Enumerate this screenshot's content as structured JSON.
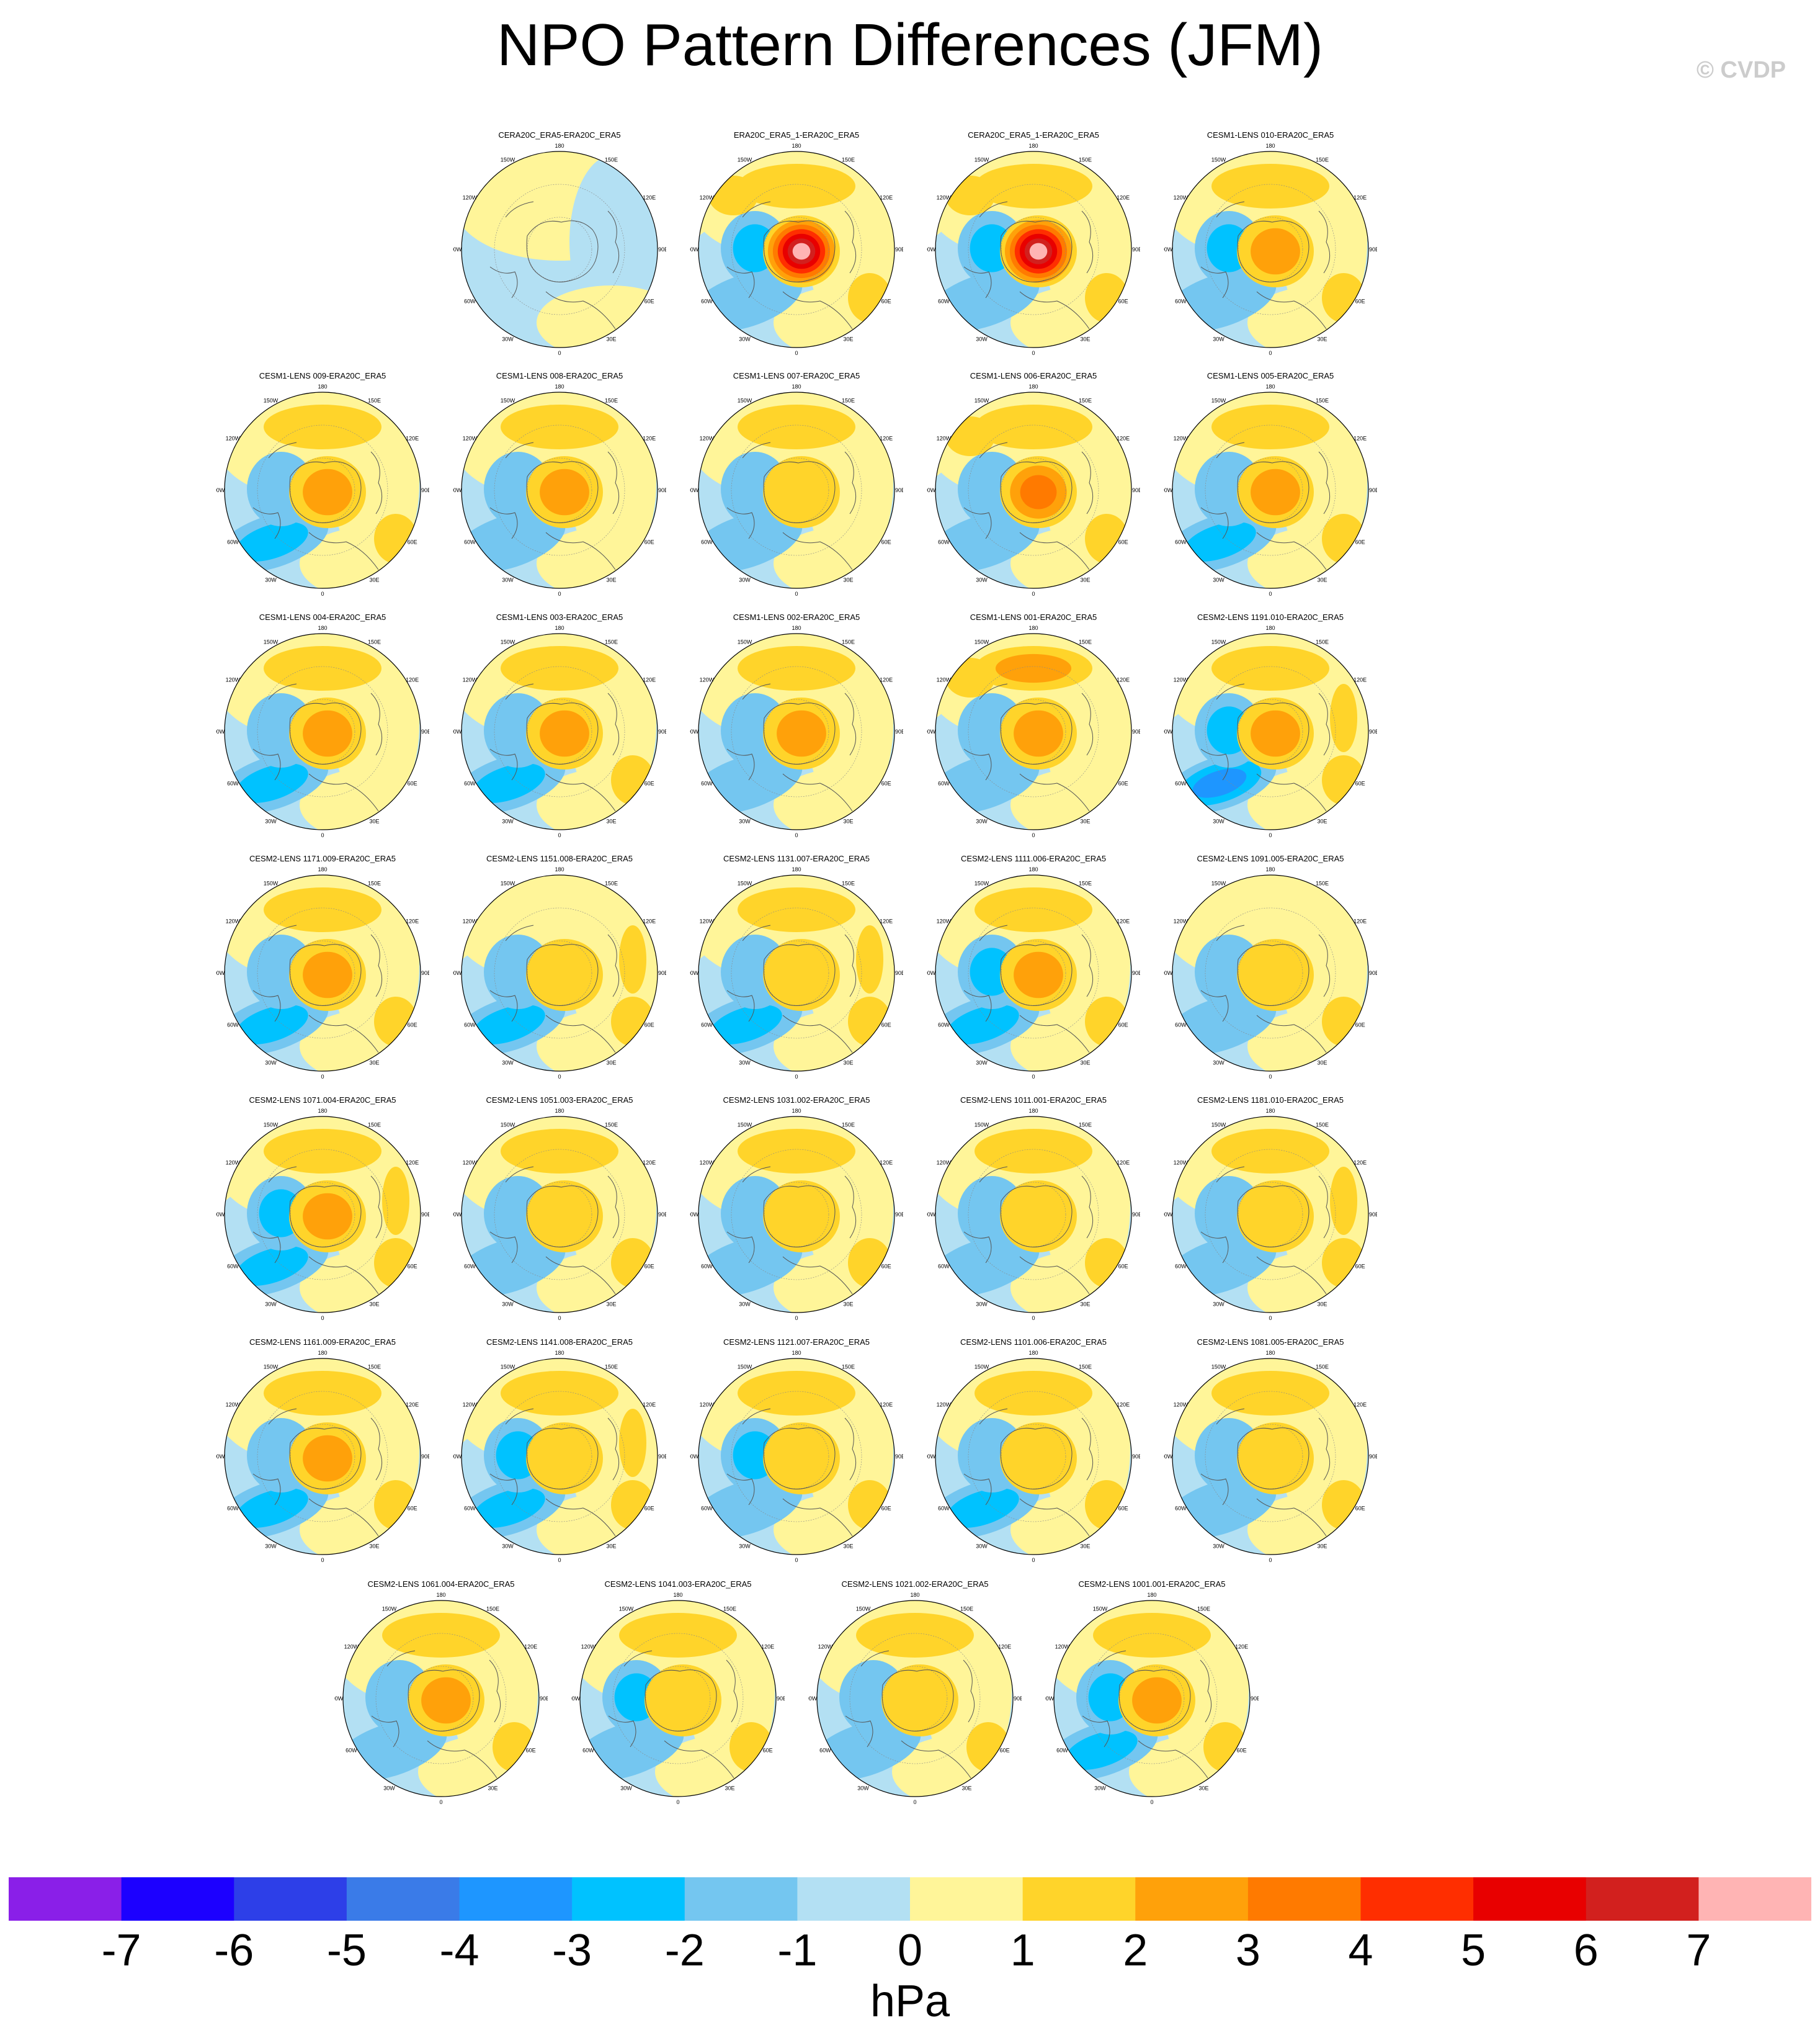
{
  "title": "NPO Pattern Differences (JFM)",
  "credit": "© CVDP",
  "chart_data": {
    "type": "heatmap",
    "title": "NPO Pattern Differences (JFM)",
    "projection": "polar-stereographic",
    "lon_labels": [
      "180",
      "150E",
      "120E",
      "90E",
      "60E",
      "30E",
      "0",
      "30W",
      "60W",
      "90W",
      "120W",
      "150W"
    ],
    "colorbar": {
      "unit": "hPa",
      "ticks": [
        "-7",
        "-6",
        "-5",
        "-4",
        "-3",
        "-2",
        "-1",
        "0",
        "1",
        "2",
        "3",
        "4",
        "5",
        "6",
        "7"
      ],
      "colors": [
        "#8a1fe8",
        "#1c00ff",
        "#2d3fe8",
        "#3a7be8",
        "#1e96ff",
        "#00c2ff",
        "#74c6f0",
        "#b3e0f3",
        "#fff599",
        "#ffd42a",
        "#ffa10a",
        "#ff7a00",
        "#ff2e00",
        "#e80000",
        "#d2201e",
        "#ffb4b4"
      ]
    },
    "panels": [
      {
        "title": "CERA20C_ERA5-ERA20C_ERA5",
        "row": 0,
        "col": 1,
        "center": -0.4,
        "west": -0.4,
        "north": 0.1,
        "south": -0.4,
        "east": 0.1,
        "wnorth": 0.0,
        "ne": 0.0
      },
      {
        "title": "ERA20C_ERA5_1-ERA20C_ERA5",
        "row": 0,
        "col": 2,
        "center": 7.2,
        "west": -2.2,
        "north": 1.5,
        "south": -1.6,
        "east": 1.2,
        "wnorth": 1.8,
        "ne": 0.6
      },
      {
        "title": "CERA20C_ERA5_1-ERA20C_ERA5",
        "row": 0,
        "col": 3,
        "center": 7.0,
        "west": -2.0,
        "north": 1.4,
        "south": -1.6,
        "east": 1.2,
        "wnorth": 1.6,
        "ne": 0.6
      },
      {
        "title": "CESM1-LENS 010-ERA20C_ERA5",
        "row": 0,
        "col": 4,
        "center": 2.4,
        "west": -2.0,
        "north": 1.6,
        "south": -1.4,
        "east": 1.0,
        "wnorth": 0.3,
        "ne": 0.4
      },
      {
        "title": "CESM1-LENS 009-ERA20C_ERA5",
        "row": 1,
        "col": 0,
        "center": 2.4,
        "west": -1.4,
        "north": 1.7,
        "south": -2.2,
        "east": 1.0,
        "wnorth": 0.4,
        "ne": 0.3
      },
      {
        "title": "CESM1-LENS 008-ERA20C_ERA5",
        "row": 1,
        "col": 1,
        "center": 2.2,
        "west": -1.2,
        "north": 1.6,
        "south": -1.8,
        "east": 0.8,
        "wnorth": 0.4,
        "ne": 0.4
      },
      {
        "title": "CESM1-LENS 007-ERA20C_ERA5",
        "row": 1,
        "col": 2,
        "center": 1.8,
        "west": -1.6,
        "north": 1.5,
        "south": -1.4,
        "east": 0.9,
        "wnorth": 0.4,
        "ne": 0.3
      },
      {
        "title": "CESM1-LENS 006-ERA20C_ERA5",
        "row": 1,
        "col": 3,
        "center": 3.6,
        "west": -1.8,
        "north": 1.8,
        "south": -1.6,
        "east": 1.0,
        "wnorth": 1.6,
        "ne": 0.3
      },
      {
        "title": "CESM1-LENS 005-ERA20C_ERA5",
        "row": 1,
        "col": 4,
        "center": 2.3,
        "west": -1.6,
        "north": 1.6,
        "south": -2.4,
        "east": 1.2,
        "wnorth": 0.4,
        "ne": 0.4
      },
      {
        "title": "CESM1-LENS 004-ERA20C_ERA5",
        "row": 2,
        "col": 0,
        "center": 2.2,
        "west": -1.8,
        "north": 1.8,
        "south": -2.2,
        "east": 0.8,
        "wnorth": 0.3,
        "ne": 0.4
      },
      {
        "title": "CESM1-LENS 003-ERA20C_ERA5",
        "row": 2,
        "col": 1,
        "center": 2.4,
        "west": -1.6,
        "north": 1.8,
        "south": -2.0,
        "east": 1.0,
        "wnorth": 0.4,
        "ne": 0.4
      },
      {
        "title": "CESM1-LENS 002-ERA20C_ERA5",
        "row": 2,
        "col": 2,
        "center": 2.2,
        "west": -1.6,
        "north": 1.6,
        "south": -1.8,
        "east": 0.9,
        "wnorth": 0.3,
        "ne": 0.4
      },
      {
        "title": "CESM1-LENS 001-ERA20C_ERA5",
        "row": 2,
        "col": 3,
        "center": 2.3,
        "west": -1.8,
        "north": 2.0,
        "south": -1.8,
        "east": 0.9,
        "wnorth": 1.5,
        "ne": 0.4
      },
      {
        "title": "CESM2-LENS 1191.010-ERA20C_ERA5",
        "row": 2,
        "col": 4,
        "center": 2.6,
        "west": -2.4,
        "north": 1.8,
        "south": -3.4,
        "east": 1.4,
        "wnorth": 0.3,
        "ne": 1.8
      },
      {
        "title": "CESM2-LENS 1171.009-ERA20C_ERA5",
        "row": 3,
        "col": 0,
        "center": 2.4,
        "west": -1.6,
        "north": 1.8,
        "south": -2.4,
        "east": 1.4,
        "wnorth": 0.3,
        "ne": 0.6
      },
      {
        "title": "CESM2-LENS 1151.008-ERA20C_ERA5",
        "row": 3,
        "col": 1,
        "center": 1.6,
        "west": -1.8,
        "north": 0.8,
        "south": -2.6,
        "east": 1.2,
        "wnorth": 0.3,
        "ne": 1.8
      },
      {
        "title": "CESM2-LENS 1131.007-ERA20C_ERA5",
        "row": 3,
        "col": 2,
        "center": 1.8,
        "west": -1.6,
        "north": 1.2,
        "south": -2.0,
        "east": 1.2,
        "wnorth": 0.3,
        "ne": 1.8
      },
      {
        "title": "CESM2-LENS 1111.006-ERA20C_ERA5",
        "row": 3,
        "col": 3,
        "center": 2.4,
        "west": -2.0,
        "north": 1.9,
        "south": -2.2,
        "east": 1.2,
        "wnorth": 0.3,
        "ne": 0.6
      },
      {
        "title": "CESM2-LENS 1091.005-ERA20C_ERA5",
        "row": 3,
        "col": 4,
        "center": 1.8,
        "west": -1.4,
        "north": 0.7,
        "south": -1.4,
        "east": 1.2,
        "wnorth": 0.2,
        "ne": 0.4
      },
      {
        "title": "CESM2-LENS 1071.004-ERA20C_ERA5",
        "row": 4,
        "col": 0,
        "center": 2.6,
        "west": -2.2,
        "north": 1.6,
        "south": -2.4,
        "east": 1.4,
        "wnorth": 0.3,
        "ne": 1.6
      },
      {
        "title": "CESM2-LENS 1051.003-ERA20C_ERA5",
        "row": 4,
        "col": 1,
        "center": 1.8,
        "west": -1.6,
        "north": 1.2,
        "south": -1.8,
        "east": 1.2,
        "wnorth": 0.2,
        "ne": 0.6
      },
      {
        "title": "CESM2-LENS 1031.002-ERA20C_ERA5",
        "row": 4,
        "col": 2,
        "center": 1.6,
        "west": -1.6,
        "north": 1.8,
        "south": -1.6,
        "east": 1.2,
        "wnorth": 0.3,
        "ne": 0.6
      },
      {
        "title": "CESM2-LENS 1011.001-ERA20C_ERA5",
        "row": 4,
        "col": 3,
        "center": 1.8,
        "west": -1.6,
        "north": 1.6,
        "south": -1.6,
        "east": 1.2,
        "wnorth": 0.2,
        "ne": 0.5
      },
      {
        "title": "CESM2-LENS 1181.010-ERA20C_ERA5",
        "row": 4,
        "col": 4,
        "center": 1.8,
        "west": -1.6,
        "north": 1.3,
        "south": -1.6,
        "east": 1.2,
        "wnorth": 0.2,
        "ne": 1.4
      },
      {
        "title": "CESM2-LENS 1161.009-ERA20C_ERA5",
        "row": 5,
        "col": 0,
        "center": 2.0,
        "west": -1.4,
        "north": 1.6,
        "south": -2.0,
        "east": 1.2,
        "wnorth": 0.3,
        "ne": 0.5
      },
      {
        "title": "CESM2-LENS 1141.008-ERA20C_ERA5",
        "row": 5,
        "col": 1,
        "center": 1.8,
        "west": -2.0,
        "north": 1.9,
        "south": -2.4,
        "east": 1.2,
        "wnorth": 0.3,
        "ne": 1.6
      },
      {
        "title": "CESM2-LENS 1121.007-ERA20C_ERA5",
        "row": 5,
        "col": 2,
        "center": 1.4,
        "west": -2.2,
        "north": 1.2,
        "south": -1.4,
        "east": 1.0,
        "wnorth": 0.2,
        "ne": 0.4
      },
      {
        "title": "CESM2-LENS 1101.006-ERA20C_ERA5",
        "row": 5,
        "col": 3,
        "center": 1.8,
        "west": -1.6,
        "north": 1.6,
        "south": -2.0,
        "east": 1.2,
        "wnorth": 0.3,
        "ne": 0.5
      },
      {
        "title": "CESM2-LENS 1081.005-ERA20C_ERA5",
        "row": 5,
        "col": 4,
        "center": 1.6,
        "west": -1.4,
        "north": 1.2,
        "south": -1.4,
        "east": 1.0,
        "wnorth": 0.2,
        "ne": 0.4
      },
      {
        "title": "CESM2-LENS 1061.004-ERA20C_ERA5",
        "row": 6,
        "col": 0,
        "center": 2.0,
        "west": -1.6,
        "north": 1.4,
        "south": -1.8,
        "east": 1.2,
        "wnorth": 0.3,
        "ne": 0.5
      },
      {
        "title": "CESM2-LENS 1041.003-ERA20C_ERA5",
        "row": 6,
        "col": 1,
        "center": 1.8,
        "west": -2.0,
        "north": 1.2,
        "south": -1.8,
        "east": 1.2,
        "wnorth": 0.2,
        "ne": 0.5
      },
      {
        "title": "CESM2-LENS 1021.002-ERA20C_ERA5",
        "row": 6,
        "col": 2,
        "center": 1.4,
        "west": -1.6,
        "north": 1.0,
        "south": -1.4,
        "east": 1.0,
        "wnorth": 0.3,
        "ne": 0.4
      },
      {
        "title": "CESM2-LENS 1001.001-ERA20C_ERA5",
        "row": 6,
        "col": 3,
        "center": 2.8,
        "west": -2.2,
        "north": 1.6,
        "south": -2.6,
        "east": 1.2,
        "wnorth": 0.3,
        "ne": 0.6
      }
    ]
  }
}
